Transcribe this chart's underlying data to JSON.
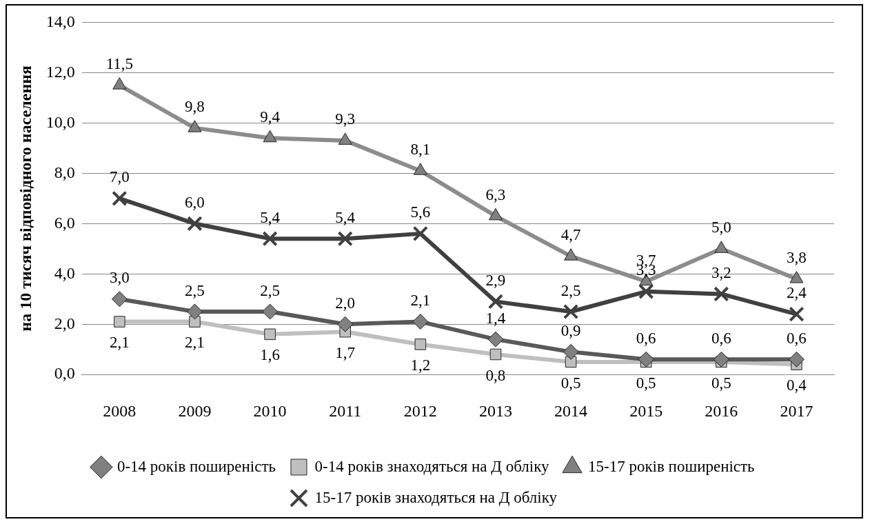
{
  "chart_data": {
    "type": "line",
    "ylabel": "на 10 тисяч відповідного населення",
    "categories": [
      "2008",
      "2009",
      "2010",
      "2011",
      "2012",
      "2013",
      "2014",
      "2015",
      "2016",
      "2017"
    ],
    "ylim": [
      0,
      14
    ],
    "yticks": [
      {
        "value": 0,
        "label": "0,0"
      },
      {
        "value": 2,
        "label": "2,0"
      },
      {
        "value": 4,
        "label": "4,0"
      },
      {
        "value": 6,
        "label": "6,0"
      },
      {
        "value": 8,
        "label": "8,0"
      },
      {
        "value": 10,
        "label": "10,0"
      },
      {
        "value": 12,
        "label": "12,0"
      },
      {
        "value": 14,
        "label": "14,0"
      }
    ],
    "grid": "y",
    "legend": "bottom",
    "line_style": "solid",
    "series": [
      {
        "name": "0-14 років поширеність",
        "color": "#595959",
        "marker": "diamond",
        "values": [
          3.0,
          2.5,
          2.5,
          2.0,
          2.1,
          1.4,
          0.9,
          0.6,
          0.6,
          0.6
        ],
        "value_labels": [
          "3,0",
          "2,5",
          "2,5",
          "2,0",
          "2,1",
          "1,4",
          "0,9",
          "0,6",
          "0,6",
          "0,6"
        ]
      },
      {
        "name": "0-14 років знаходяться на Д обліку",
        "color": "#bfbfbf",
        "marker": "square",
        "values": [
          2.1,
          2.1,
          1.6,
          1.7,
          1.2,
          0.8,
          0.5,
          0.5,
          0.5,
          0.4
        ],
        "value_labels": [
          "2,1",
          "2,1",
          "1,6",
          "1,7",
          "1,2",
          "0,8",
          "0,5",
          "0,5",
          "0,5",
          "0,4"
        ]
      },
      {
        "name": "15-17 років поширеність",
        "color": "#8c8c8c",
        "marker": "triangle",
        "values": [
          11.5,
          9.8,
          9.4,
          9.3,
          8.1,
          6.3,
          4.7,
          3.7,
          5.0,
          3.8
        ],
        "value_labels": [
          "11,5",
          "9,8",
          "9,4",
          "9,3",
          "8,1",
          "6,3",
          "4,7",
          "3,7",
          "5,0",
          "3,8"
        ]
      },
      {
        "name": "15-17 років знаходяться на Д обліку",
        "color": "#404040",
        "marker": "cross",
        "values": [
          7.0,
          6.0,
          5.4,
          5.4,
          5.6,
          2.9,
          2.5,
          3.3,
          3.2,
          2.4
        ],
        "value_labels": [
          "7,0",
          "6,0",
          "5,4",
          "5,4",
          "5,6",
          "2,9",
          "2,5",
          "3,3",
          "3,2",
          "2,4"
        ]
      }
    ]
  }
}
